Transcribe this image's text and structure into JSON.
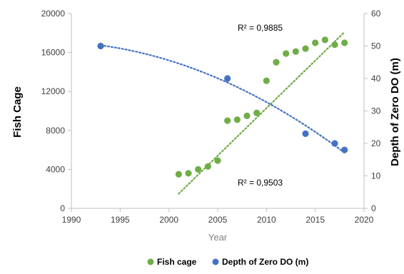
{
  "chart_data": {
    "type": "scatter",
    "xlabel": "Year",
    "ylabel_left": "Fish Cage",
    "ylabel_right": "Depth of Zero DO (m)",
    "xlim": [
      1990,
      2020
    ],
    "xticks": [
      "1990",
      "1995",
      "2000",
      "2005",
      "2010",
      "2015",
      "2020"
    ],
    "ylim_left": [
      0,
      20000
    ],
    "yticks_left": [
      "0",
      "4000",
      "8000",
      "12000",
      "16000",
      "20000"
    ],
    "ylim_right": [
      0,
      60
    ],
    "yticks_right": [
      "0",
      "10",
      "20",
      "30",
      "40",
      "50",
      "60"
    ],
    "grid": false,
    "legend_position": "bottom",
    "series": [
      {
        "name": "Fish cage",
        "axis": "left",
        "color": "#70ad47",
        "x": [
          2001,
          2002,
          2003,
          2004,
          2005,
          2006,
          2007,
          2008,
          2009,
          2010,
          2011,
          2012,
          2013,
          2014,
          2015,
          2016,
          2017,
          2018
        ],
        "y": [
          3500,
          3600,
          4000,
          4300,
          4900,
          9000,
          9100,
          9500,
          9800,
          13100,
          15000,
          15900,
          16100,
          16400,
          17000,
          17300,
          16800,
          17000
        ],
        "trendline": {
          "type": "linear",
          "x_from": 2001,
          "x_to": 2018,
          "y_from": 1500,
          "y_to": 18100
        },
        "r2_label": "R² = 0,9885"
      },
      {
        "name": "Depth of Zero DO (m)",
        "axis": "right",
        "color": "#4472c4",
        "x": [
          1993,
          2006,
          2014,
          2017,
          2018
        ],
        "y": [
          50,
          40,
          23,
          20,
          18
        ],
        "trendline": {
          "type": "polynomial",
          "x_from": 1993,
          "x_to": 2018
        },
        "r2_label": "R² = 0,9503"
      }
    ]
  }
}
